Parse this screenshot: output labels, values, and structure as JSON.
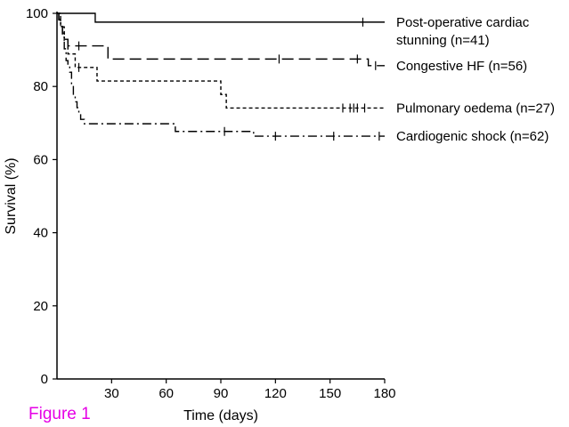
{
  "figure_label": "Figure 1",
  "figure_label_color": "#e600e6",
  "chart_data": {
    "type": "line",
    "step": true,
    "xlabel": "Time (days)",
    "ylabel": "Survival (%)",
    "xlim": [
      0,
      180
    ],
    "ylim": [
      0,
      100
    ],
    "x_ticks": [
      30,
      60,
      90,
      120,
      150,
      180
    ],
    "y_ticks": [
      0,
      20,
      40,
      60,
      80,
      100
    ],
    "legend_placement": "right, at end of each line",
    "series": [
      {
        "name": "Post-operative cardiac stunning (n=41)",
        "label_lines": [
          "Post-operative cardiac",
          "stunning (n=41)"
        ],
        "style": "solid",
        "x": [
          0,
          1,
          2,
          21,
          180
        ],
        "y": [
          100,
          100,
          100,
          97.6,
          97.6
        ],
        "censor_x": [
          168
        ]
      },
      {
        "name": "Congestive HF (n=56)",
        "label_lines": [
          "Congestive HF (n=56)"
        ],
        "style": "long-dash",
        "x": [
          0,
          1,
          2,
          3,
          4,
          6,
          8,
          10,
          28,
          171,
          180
        ],
        "y": [
          100,
          98.2,
          96.4,
          94.6,
          92.9,
          91.1,
          91.1,
          91.1,
          87.5,
          85.7,
          85.7
        ],
        "censor_x": [
          12,
          122,
          165,
          175
        ]
      },
      {
        "name": "Pulmonary oedema (n=27)",
        "label_lines": [
          "Pulmonary oedema (n=27)"
        ],
        "style": "short-dash",
        "x": [
          0,
          2,
          4,
          6,
          10,
          22,
          90,
          93,
          180
        ],
        "y": [
          100,
          96.3,
          92.6,
          88.9,
          85.2,
          81.5,
          77.8,
          74.1,
          74.1
        ],
        "censor_x": [
          12,
          157,
          161,
          163,
          165,
          169
        ]
      },
      {
        "name": "Cardiogenic shock (n=62)",
        "label_lines": [
          "Cardiogenic shock (n=62)"
        ],
        "style": "dash-dot",
        "x": [
          0,
          1,
          2,
          3,
          4,
          5,
          6,
          7,
          8,
          9,
          10,
          11,
          12,
          13,
          15,
          65,
          108,
          180
        ],
        "y": [
          100,
          98.4,
          96.8,
          93.5,
          90.3,
          87.1,
          85.5,
          83.9,
          80.6,
          77.4,
          75.8,
          74.2,
          72.6,
          71.0,
          69.8,
          67.7,
          66.4,
          66.4
        ],
        "censor_x": [
          92,
          120,
          152,
          177
        ]
      }
    ]
  }
}
